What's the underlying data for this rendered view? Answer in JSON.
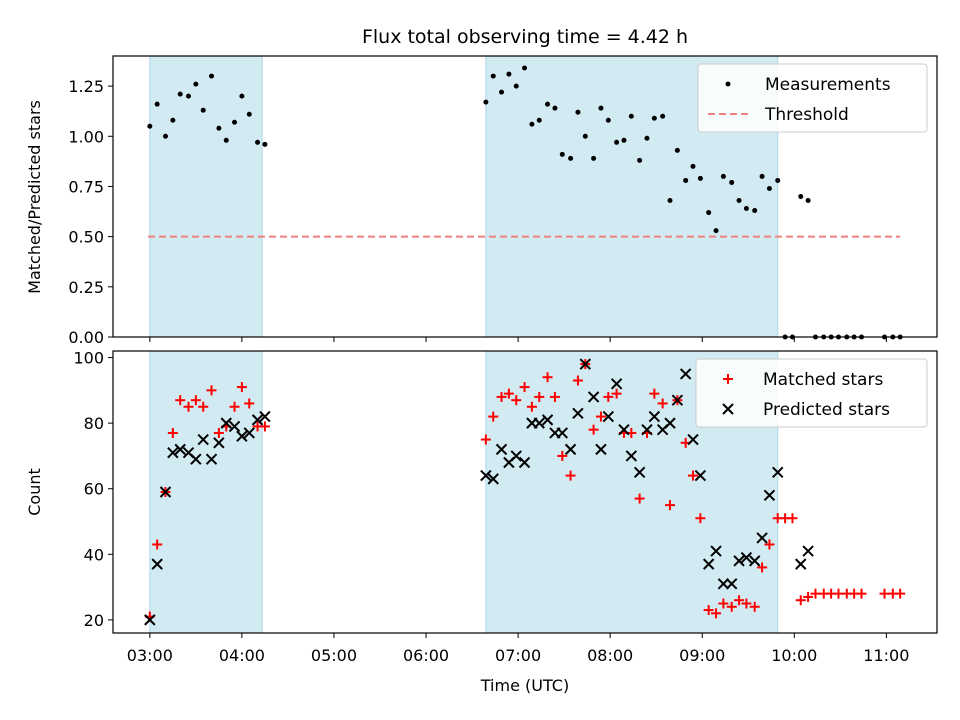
{
  "chart_data": [
    {
      "type": "scatter",
      "title": "Flux total observing time = 4.42 h",
      "xlabel": "",
      "ylabel": "Matched/Predicted stars",
      "xlim": [
        2.6,
        11.55
      ],
      "ylim": [
        0.0,
        1.4
      ],
      "x_ticks": [
        3,
        4,
        5,
        6,
        7,
        8,
        9,
        10,
        11
      ],
      "y_ticks": [
        0.0,
        0.25,
        0.5,
        0.75,
        1.0,
        1.25
      ],
      "y_tick_labels": [
        "0.00",
        "0.25",
        "0.50",
        "0.75",
        "1.00",
        "1.25"
      ],
      "legend_position": "top-right",
      "shaded_intervals": [
        [
          3.0,
          4.22
        ],
        [
          6.65,
          9.82
        ]
      ],
      "shade_color": "#add8e6",
      "series": [
        {
          "name": "Measurements",
          "marker": "dot",
          "color": "#000000",
          "points": [
            [
              3.0,
              1.05
            ],
            [
              3.08,
              1.16
            ],
            [
              3.17,
              1.0
            ],
            [
              3.25,
              1.08
            ],
            [
              3.33,
              1.21
            ],
            [
              3.42,
              1.2
            ],
            [
              3.5,
              1.26
            ],
            [
              3.58,
              1.13
            ],
            [
              3.67,
              1.3
            ],
            [
              3.75,
              1.04
            ],
            [
              3.83,
              0.98
            ],
            [
              3.92,
              1.07
            ],
            [
              4.0,
              1.2
            ],
            [
              4.08,
              1.11
            ],
            [
              4.17,
              0.97
            ],
            [
              4.25,
              0.96
            ],
            [
              6.65,
              1.17
            ],
            [
              6.73,
              1.3
            ],
            [
              6.82,
              1.22
            ],
            [
              6.9,
              1.31
            ],
            [
              6.98,
              1.25
            ],
            [
              7.07,
              1.34
            ],
            [
              7.15,
              1.06
            ],
            [
              7.23,
              1.08
            ],
            [
              7.32,
              1.16
            ],
            [
              7.4,
              1.14
            ],
            [
              7.48,
              0.91
            ],
            [
              7.57,
              0.89
            ],
            [
              7.65,
              1.12
            ],
            [
              7.73,
              1.0
            ],
            [
              7.82,
              0.89
            ],
            [
              7.9,
              1.14
            ],
            [
              7.98,
              1.08
            ],
            [
              8.07,
              0.97
            ],
            [
              8.15,
              0.98
            ],
            [
              8.23,
              1.1
            ],
            [
              8.32,
              0.88
            ],
            [
              8.4,
              0.99
            ],
            [
              8.48,
              1.09
            ],
            [
              8.57,
              1.1
            ],
            [
              8.65,
              0.68
            ],
            [
              8.73,
              0.93
            ],
            [
              8.82,
              0.78
            ],
            [
              8.9,
              0.85
            ],
            [
              8.98,
              0.79
            ],
            [
              9.07,
              0.62
            ],
            [
              9.15,
              0.53
            ],
            [
              9.23,
              0.8
            ],
            [
              9.32,
              0.77
            ],
            [
              9.4,
              0.68
            ],
            [
              9.48,
              0.64
            ],
            [
              9.57,
              0.63
            ],
            [
              9.65,
              0.8
            ],
            [
              9.73,
              0.74
            ],
            [
              9.82,
              0.78
            ],
            [
              9.9,
              0.0
            ],
            [
              9.98,
              0.0
            ],
            [
              10.07,
              0.7
            ],
            [
              10.15,
              0.68
            ],
            [
              10.23,
              0.0
            ],
            [
              10.32,
              0.0
            ],
            [
              10.4,
              0.0
            ],
            [
              10.48,
              0.0
            ],
            [
              10.57,
              0.0
            ],
            [
              10.65,
              0.0
            ],
            [
              10.73,
              0.0
            ],
            [
              10.98,
              0.0
            ],
            [
              11.07,
              0.0
            ],
            [
              11.15,
              0.0
            ]
          ]
        },
        {
          "name": "Threshold",
          "marker": "dashed-line",
          "color": "#f08080",
          "x": [
            2.98,
            11.15
          ],
          "y": [
            0.5,
            0.5
          ]
        }
      ]
    },
    {
      "type": "scatter",
      "title": "",
      "xlabel": "Time (UTC)",
      "ylabel": "Count",
      "xlim": [
        2.6,
        11.55
      ],
      "ylim": [
        16,
        102
      ],
      "x_ticks": [
        3,
        4,
        5,
        6,
        7,
        8,
        9,
        10,
        11
      ],
      "x_tick_labels": [
        "03:00",
        "04:00",
        "05:00",
        "06:00",
        "07:00",
        "08:00",
        "09:00",
        "10:00",
        "11:00"
      ],
      "y_ticks": [
        20,
        40,
        60,
        80,
        100
      ],
      "y_tick_labels": [
        "20",
        "40",
        "60",
        "80",
        "100"
      ],
      "legend_position": "top-right",
      "shaded_intervals": [
        [
          3.0,
          4.22
        ],
        [
          6.65,
          9.82
        ]
      ],
      "shade_color": "#add8e6",
      "series": [
        {
          "name": "Matched stars",
          "marker": "plus",
          "color": "#ff0000",
          "points": [
            [
              3.0,
              21
            ],
            [
              3.08,
              43
            ],
            [
              3.17,
              59
            ],
            [
              3.25,
              77
            ],
            [
              3.33,
              87
            ],
            [
              3.42,
              85
            ],
            [
              3.5,
              87
            ],
            [
              3.58,
              85
            ],
            [
              3.67,
              90
            ],
            [
              3.75,
              77
            ],
            [
              3.83,
              79
            ],
            [
              3.92,
              85
            ],
            [
              4.0,
              91
            ],
            [
              4.08,
              86
            ],
            [
              4.17,
              79
            ],
            [
              4.25,
              79
            ],
            [
              6.65,
              75
            ],
            [
              6.73,
              82
            ],
            [
              6.82,
              88
            ],
            [
              6.9,
              89
            ],
            [
              6.98,
              87
            ],
            [
              7.07,
              91
            ],
            [
              7.15,
              85
            ],
            [
              7.23,
              88
            ],
            [
              7.32,
              94
            ],
            [
              7.4,
              88
            ],
            [
              7.48,
              70
            ],
            [
              7.57,
              64
            ],
            [
              7.65,
              93
            ],
            [
              7.73,
              98
            ],
            [
              7.82,
              78
            ],
            [
              7.9,
              82
            ],
            [
              7.98,
              88
            ],
            [
              8.07,
              89
            ],
            [
              8.15,
              77
            ],
            [
              8.23,
              77
            ],
            [
              8.32,
              57
            ],
            [
              8.4,
              77
            ],
            [
              8.48,
              89
            ],
            [
              8.57,
              86
            ],
            [
              8.65,
              55
            ],
            [
              8.73,
              87
            ],
            [
              8.82,
              74
            ],
            [
              8.9,
              64
            ],
            [
              8.98,
              51
            ],
            [
              9.07,
              23
            ],
            [
              9.15,
              22
            ],
            [
              9.23,
              25
            ],
            [
              9.32,
              24
            ],
            [
              9.4,
              26
            ],
            [
              9.48,
              25
            ],
            [
              9.57,
              24
            ],
            [
              9.65,
              36
            ],
            [
              9.73,
              43
            ],
            [
              9.82,
              51
            ],
            [
              9.9,
              51
            ],
            [
              9.98,
              51
            ],
            [
              10.07,
              26
            ],
            [
              10.15,
              27
            ],
            [
              10.23,
              28
            ],
            [
              10.32,
              28
            ],
            [
              10.4,
              28
            ],
            [
              10.48,
              28
            ],
            [
              10.57,
              28
            ],
            [
              10.65,
              28
            ],
            [
              10.73,
              28
            ],
            [
              10.98,
              28
            ],
            [
              11.07,
              28
            ],
            [
              11.15,
              28
            ]
          ]
        },
        {
          "name": "Predicted stars",
          "marker": "x",
          "color": "#000000",
          "points": [
            [
              3.0,
              20
            ],
            [
              3.08,
              37
            ],
            [
              3.17,
              59
            ],
            [
              3.25,
              71
            ],
            [
              3.33,
              72
            ],
            [
              3.42,
              71
            ],
            [
              3.5,
              69
            ],
            [
              3.58,
              75
            ],
            [
              3.67,
              69
            ],
            [
              3.75,
              74
            ],
            [
              3.83,
              80
            ],
            [
              3.92,
              79
            ],
            [
              4.0,
              76
            ],
            [
              4.08,
              77
            ],
            [
              4.17,
              81
            ],
            [
              4.25,
              82
            ],
            [
              6.65,
              64
            ],
            [
              6.73,
              63
            ],
            [
              6.82,
              72
            ],
            [
              6.9,
              68
            ],
            [
              6.98,
              70
            ],
            [
              7.07,
              68
            ],
            [
              7.15,
              80
            ],
            [
              7.23,
              80
            ],
            [
              7.32,
              81
            ],
            [
              7.4,
              77
            ],
            [
              7.48,
              77
            ],
            [
              7.57,
              72
            ],
            [
              7.65,
              83
            ],
            [
              7.73,
              98
            ],
            [
              7.82,
              88
            ],
            [
              7.9,
              72
            ],
            [
              7.98,
              82
            ],
            [
              8.07,
              92
            ],
            [
              8.15,
              78
            ],
            [
              8.23,
              70
            ],
            [
              8.32,
              65
            ],
            [
              8.4,
              78
            ],
            [
              8.48,
              82
            ],
            [
              8.57,
              78
            ],
            [
              8.65,
              80
            ],
            [
              8.73,
              87
            ],
            [
              8.82,
              95
            ],
            [
              8.9,
              75
            ],
            [
              8.98,
              64
            ],
            [
              9.07,
              37
            ],
            [
              9.15,
              41
            ],
            [
              9.23,
              31
            ],
            [
              9.32,
              31
            ],
            [
              9.4,
              38
            ],
            [
              9.48,
              39
            ],
            [
              9.57,
              38
            ],
            [
              9.65,
              45
            ],
            [
              9.73,
              58
            ],
            [
              9.82,
              65
            ],
            [
              10.07,
              37
            ],
            [
              10.15,
              41
            ]
          ]
        }
      ]
    }
  ]
}
